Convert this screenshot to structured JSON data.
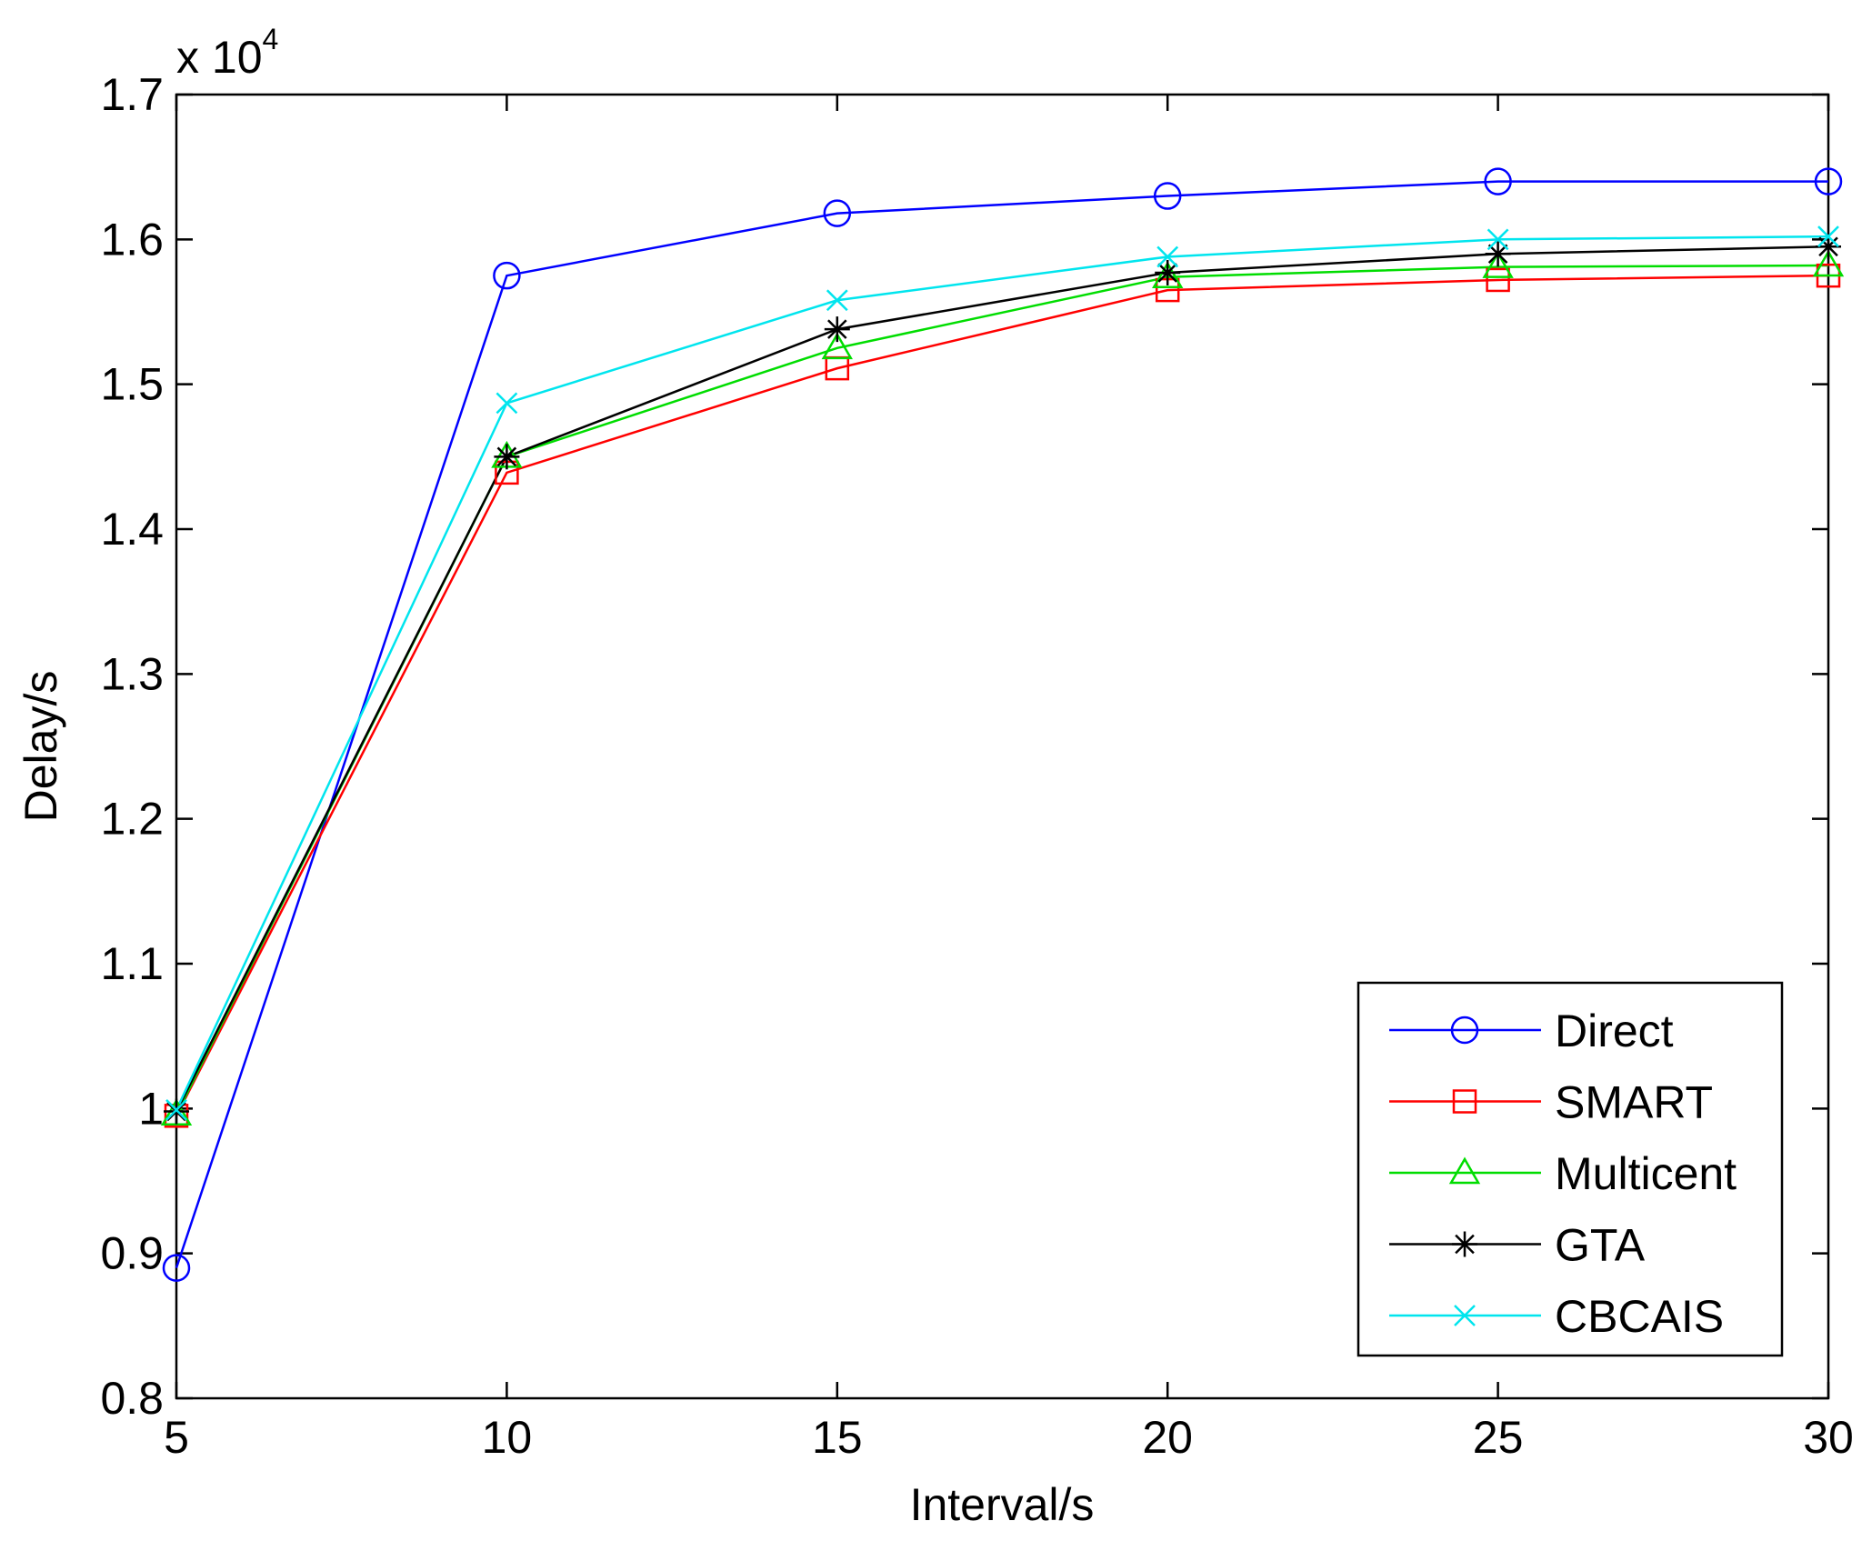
{
  "chart_data": {
    "type": "line",
    "xlabel": "Interval/s",
    "ylabel": "Delay/s",
    "exponent_label": "x 10",
    "exponent_power": "4",
    "x": [
      5,
      10,
      15,
      20,
      25,
      30
    ],
    "xlim": [
      5,
      30
    ],
    "ylim": [
      0.8,
      1.7
    ],
    "xticks": [
      5,
      10,
      15,
      20,
      25,
      30
    ],
    "xtick_labels": [
      "5",
      "10",
      "15",
      "20",
      "25",
      "30"
    ],
    "yticks": [
      0.8,
      0.9,
      1.0,
      1.1,
      1.2,
      1.3,
      1.4,
      1.5,
      1.6,
      1.7
    ],
    "ytick_labels": [
      "0.8",
      "0.9",
      "1",
      "1.1",
      "1.2",
      "1.3",
      "1.4",
      "1.5",
      "1.6",
      "1.7"
    ],
    "grid": false,
    "legend_position": "bottom-right",
    "series": [
      {
        "name": "Direct",
        "color": "#0000ff",
        "marker": "circle",
        "values": [
          0.89,
          1.575,
          1.618,
          1.63,
          1.64,
          1.64
        ]
      },
      {
        "name": "SMART",
        "color": "#ff0000",
        "marker": "square",
        "values": [
          0.995,
          1.439,
          1.511,
          1.565,
          1.572,
          1.575
        ]
      },
      {
        "name": "Multicent",
        "color": "#00dd00",
        "marker": "triangle",
        "values": [
          0.996,
          1.45,
          1.525,
          1.574,
          1.581,
          1.582
        ]
      },
      {
        "name": "GTA",
        "color": "#000000",
        "marker": "star",
        "values": [
          0.998,
          1.45,
          1.538,
          1.577,
          1.59,
          1.595
        ]
      },
      {
        "name": "CBCAIS",
        "color": "#00e5ee",
        "marker": "x",
        "values": [
          0.999,
          1.487,
          1.558,
          1.588,
          1.6,
          1.602
        ]
      }
    ]
  }
}
